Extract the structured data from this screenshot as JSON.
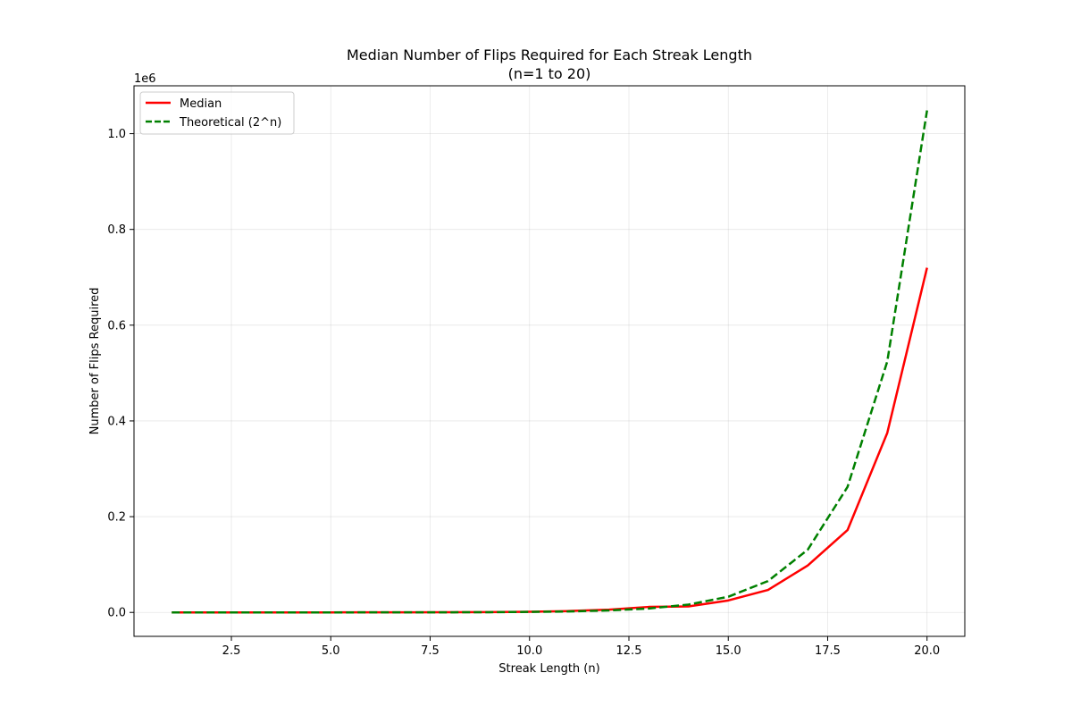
{
  "chart_data": {
    "type": "line",
    "title": "Median Number of Flips Required for Each Streak Length",
    "subtitle": "(n=1 to 20)",
    "xlabel": "Streak Length (n)",
    "ylabel": "Number of Flips Required",
    "y_offset_label": "1e6",
    "xlim": [
      0.05,
      20.95
    ],
    "ylim": [
      -0.05,
      1.1
    ],
    "y_scale_factor": 1000000,
    "x_ticks": [
      2.5,
      5.0,
      7.5,
      10.0,
      12.5,
      15.0,
      17.5,
      20.0
    ],
    "x_tick_labels": [
      "2.5",
      "5.0",
      "7.5",
      "10.0",
      "12.5",
      "15.0",
      "17.5",
      "20.0"
    ],
    "y_ticks": [
      0.0,
      0.2,
      0.4,
      0.6,
      0.8,
      1.0
    ],
    "y_tick_labels": [
      "0.0",
      "0.2",
      "0.4",
      "0.6",
      "0.8",
      "1.0"
    ],
    "grid": true,
    "legend_position": "top-left",
    "x": [
      1,
      2,
      3,
      4,
      5,
      6,
      7,
      8,
      9,
      10,
      11,
      12,
      13,
      14,
      15,
      16,
      17,
      18,
      19,
      20
    ],
    "series": [
      {
        "name": "Median",
        "color": "#ff0000",
        "style": "solid",
        "values": [
          2,
          4,
          9,
          20,
          43,
          89,
          179,
          359,
          720,
          1440,
          2880,
          5760,
          11500,
          12500,
          25000,
          47000,
          98000,
          172000,
          375000,
          720000
        ]
      },
      {
        "name": "Theoretical (2^n)",
        "color": "#008000",
        "style": "dashed",
        "values": [
          2,
          4,
          8,
          16,
          32,
          64,
          128,
          256,
          512,
          1024,
          2048,
          4096,
          8192,
          16384,
          32768,
          65536,
          131072,
          262144,
          524288,
          1048576
        ]
      }
    ]
  }
}
